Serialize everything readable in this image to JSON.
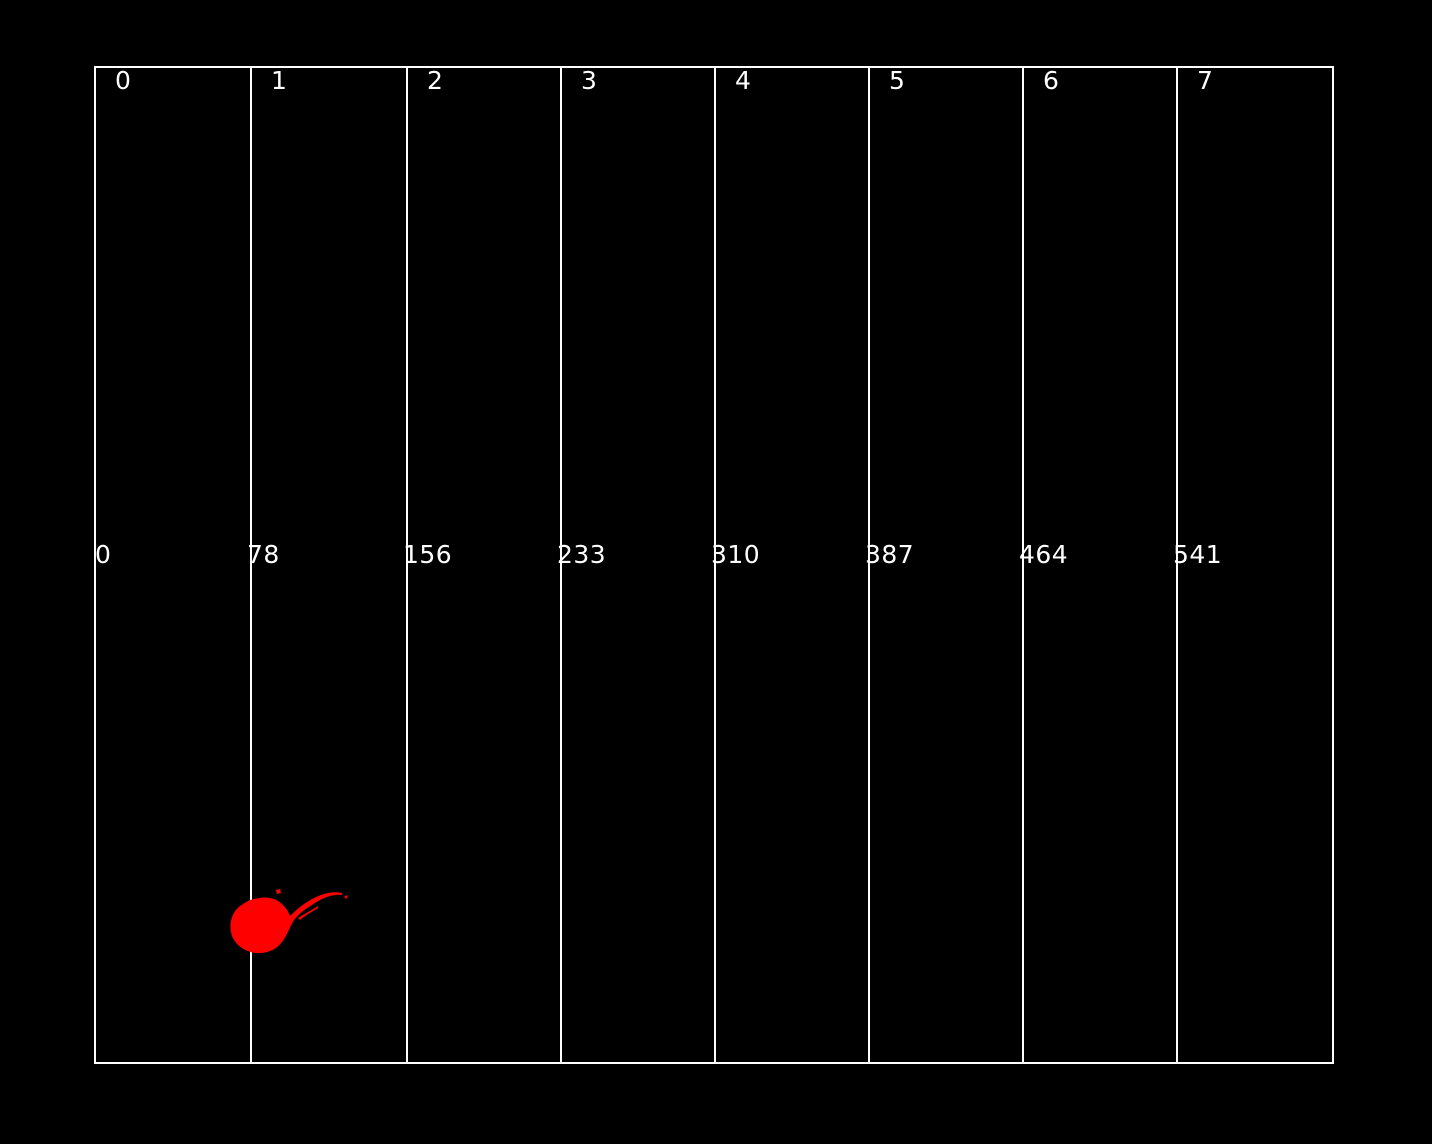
{
  "grid": {
    "line_color": "#ffffff",
    "columns": [
      {
        "index": "0",
        "offset": "0"
      },
      {
        "index": "1",
        "offset": "78"
      },
      {
        "index": "2",
        "offset": "156"
      },
      {
        "index": "3",
        "offset": "233"
      },
      {
        "index": "4",
        "offset": "310"
      },
      {
        "index": "5",
        "offset": "387"
      },
      {
        "index": "6",
        "offset": "464"
      },
      {
        "index": "7",
        "offset": "541"
      }
    ]
  },
  "marker": {
    "color": "#ff0000",
    "shape": "irregular-blob"
  }
}
